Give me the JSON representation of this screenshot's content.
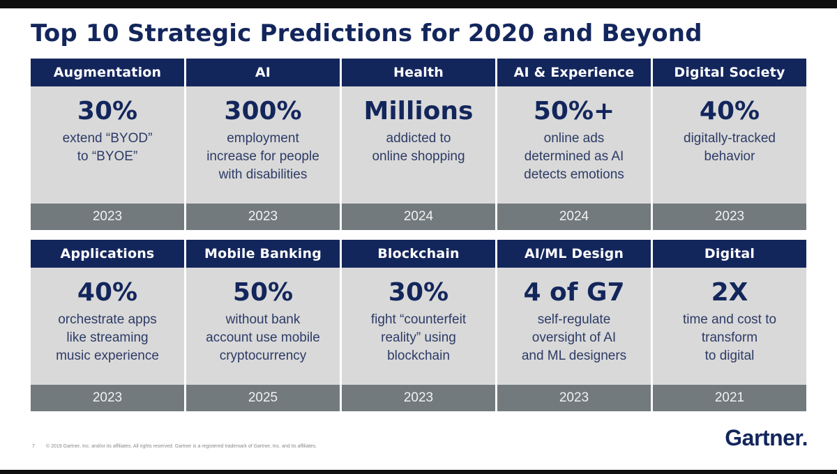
{
  "slide": {
    "title": "Top 10 Strategic Predictions for 2020 and Beyond"
  },
  "cards": [
    {
      "category": "Augmentation",
      "stat": "30%",
      "description": "extend “BYOD”\nto “BYOE”",
      "year": "2023"
    },
    {
      "category": "AI",
      "stat": "300%",
      "description": "employment\nincrease for people\nwith disabilities",
      "year": "2023"
    },
    {
      "category": "Health",
      "stat": "Millions",
      "description": "addicted to\nonline shopping",
      "year": "2024"
    },
    {
      "category": "AI & Experience",
      "stat": "50%+",
      "description": "online ads\ndetermined as AI\ndetects emotions",
      "year": "2024"
    },
    {
      "category": "Digital Society",
      "stat": "40%",
      "description": "digitally-tracked\nbehavior",
      "year": "2023"
    },
    {
      "category": "Applications",
      "stat": "40%",
      "description": "orchestrate apps\nlike streaming\nmusic experience",
      "year": "2023"
    },
    {
      "category": "Mobile Banking",
      "stat": "50%",
      "description": "without bank\naccount use mobile\ncryptocurrency",
      "year": "2025"
    },
    {
      "category": "Blockchain",
      "stat": "30%",
      "description": "fight “counterfeit\nreality” using\nblockchain",
      "year": "2023"
    },
    {
      "category": "AI/ML Design",
      "stat": "4 of G7",
      "description": "self-regulate\noversight of AI\nand ML designers",
      "year": "2023"
    },
    {
      "category": "Digital",
      "stat": "2X",
      "description": "time and cost to\ntransform\nto digital",
      "year": "2021"
    }
  ],
  "footer": {
    "page_number": "7",
    "copyright": "© 2019 Gartner, Inc. and/or its affiliates. All rights reserved. Gartner is a registered trademark of Gartner, Inc. and its affiliates.",
    "logo_text": "Gartner",
    "logo_mark": "."
  },
  "colors": {
    "navy": "#13265c",
    "card_gray": "#d9d9d9",
    "year_gray": "#727a7d"
  }
}
